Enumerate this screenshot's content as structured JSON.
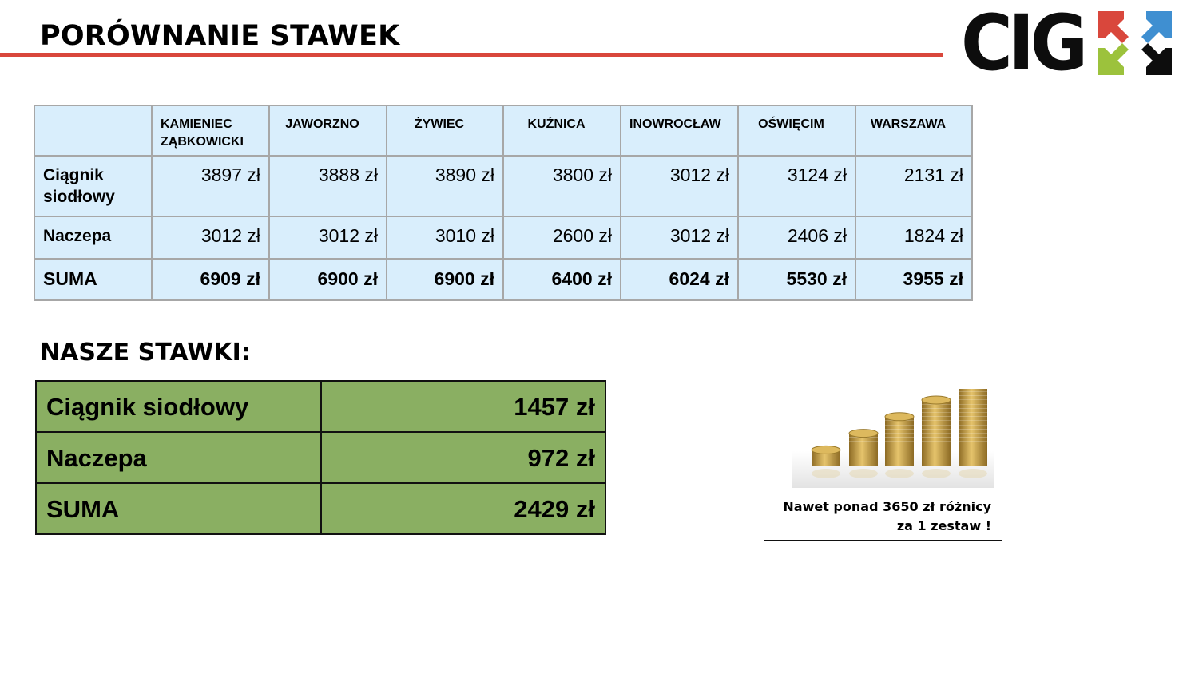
{
  "header": {
    "title": "PORÓWNANIE STAWEK",
    "logo": {
      "text": "CIG",
      "icon": "four-arrows-logo-mark"
    }
  },
  "comparison": {
    "columns": [
      "KAMIENIEC ZĄBKOWICKI",
      "JAWORZNO",
      "ŻYWIEC",
      "KUŹNICA",
      "INOWROCŁAW",
      "OŚWIĘCIM",
      "WARSZAWA"
    ],
    "rows": [
      {
        "label": "Ciągnik siodłowy",
        "values": [
          "3897 zł",
          "3888 zł",
          "3890 zł",
          "3800 zł",
          "3012 zł",
          "3124 zł",
          "2131 zł"
        ]
      },
      {
        "label": "Naczepa",
        "values": [
          "3012 zł",
          "3012 zł",
          "3010 zł",
          "2600 zł",
          "3012 zł",
          "2406 zł",
          "1824 zł"
        ]
      },
      {
        "label": "SUMA",
        "values": [
          "6909 zł",
          "6900 zł",
          "6900 zł",
          "6400 zł",
          "6024 zł",
          "5530 zł",
          "3955 zł"
        ]
      }
    ],
    "colors": {
      "cell_bg": "#d9eefc",
      "border": "#a7a7a7"
    }
  },
  "our_rates": {
    "title": "NASZE STAWKI:",
    "rows": [
      {
        "label": "Ciągnik siodłowy",
        "value": "1457 zł"
      },
      {
        "label": "Naczepa",
        "value": "972 zł"
      },
      {
        "label": "SUMA",
        "value": "2429 zł"
      }
    ],
    "colors": {
      "cell_bg": "#8aaf62"
    }
  },
  "callout": {
    "image": "coin-stacks-image",
    "line1": "Nawet ponad 3650 zł różnicy",
    "line2": "za 1 zestaw !"
  },
  "colors": {
    "accent_rule": "#d9473c",
    "logo_red": "#d9473c",
    "logo_blue": "#3f8fd1",
    "logo_green": "#9cc23c",
    "logo_black": "#0d0d0d"
  }
}
